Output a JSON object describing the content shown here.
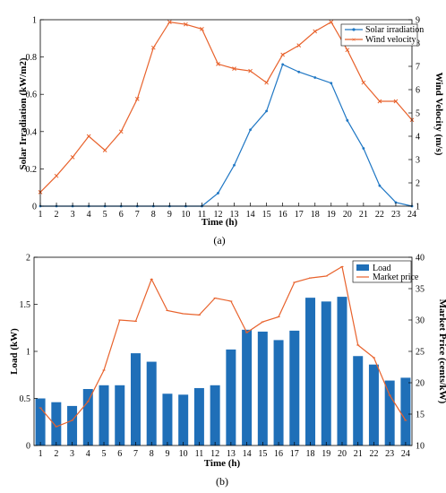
{
  "chart_data": [
    {
      "panel": "(a)",
      "type": "line",
      "xlabel": "Time (h)",
      "ylabel": "Solar Irradiation (kW/m2)",
      "y2label": "Wind Velocity (m/s)",
      "x": [
        1,
        2,
        3,
        4,
        5,
        6,
        7,
        8,
        9,
        10,
        11,
        12,
        13,
        14,
        15,
        16,
        17,
        18,
        19,
        20,
        21,
        22,
        23,
        24
      ],
      "xlim": [
        1,
        24
      ],
      "ylim": [
        0,
        1
      ],
      "yticks": [
        "0",
        "0.2",
        "0.4",
        "0.6",
        "0.8",
        "1"
      ],
      "y2lim": [
        1,
        9
      ],
      "y2ticks": [
        "1",
        "2",
        "3",
        "4",
        "5",
        "6",
        "7",
        "8",
        "9"
      ],
      "legend_position": "top-right",
      "series": [
        {
          "name": "Solar irradiation",
          "axis": "left",
          "color": "#1f77c4",
          "marker": "dot",
          "values": [
            0,
            0,
            0,
            0,
            0,
            0,
            0,
            0,
            0,
            0,
            0,
            0.07,
            0.22,
            0.41,
            0.51,
            0.76,
            0.72,
            0.69,
            0.66,
            0.46,
            0.31,
            0.11,
            0.02,
            0.0
          ]
        },
        {
          "name": "Wind velocity",
          "axis": "right",
          "color": "#e8622c",
          "marker": "x",
          "values": [
            1.6,
            2.3,
            3.1,
            4.0,
            3.4,
            4.2,
            5.6,
            7.8,
            8.9,
            8.8,
            8.6,
            7.1,
            6.9,
            6.8,
            6.3,
            7.5,
            7.9,
            8.5,
            8.9,
            7.7,
            6.3,
            5.5,
            5.5,
            4.7
          ]
        }
      ]
    },
    {
      "panel": "(b)",
      "type": "bar+line",
      "xlabel": "Time (h)",
      "ylabel": "Load (kW)",
      "y2label": "Market Price (cents/kW)",
      "x": [
        1,
        2,
        3,
        4,
        5,
        6,
        7,
        8,
        9,
        10,
        11,
        12,
        13,
        14,
        15,
        16,
        17,
        18,
        19,
        20,
        21,
        22,
        23,
        24
      ],
      "xlim": [
        0.6,
        24.4
      ],
      "ylim": [
        0,
        2
      ],
      "yticks": [
        "0",
        "0.5",
        "1",
        "1.5",
        "2"
      ],
      "y2lim": [
        10,
        40
      ],
      "y2ticks": [
        "10",
        "15",
        "20",
        "25",
        "30",
        "35",
        "40"
      ],
      "legend_position": "top-right",
      "series": [
        {
          "name": "Load",
          "kind": "bar",
          "axis": "left",
          "color": "#1f6fb8",
          "values": [
            0.5,
            0.46,
            0.42,
            0.6,
            0.64,
            0.64,
            0.98,
            0.89,
            0.55,
            0.54,
            0.61,
            0.64,
            1.02,
            1.23,
            1.21,
            1.12,
            1.22,
            1.57,
            1.53,
            1.58,
            0.95,
            0.86,
            0.69,
            0.72
          ]
        },
        {
          "name": "Market price",
          "kind": "line",
          "axis": "right",
          "color": "#e8622c",
          "marker": "tick",
          "values": [
            16.0,
            13.0,
            14.0,
            17.0,
            22.0,
            30.0,
            29.8,
            36.5,
            31.5,
            31.0,
            30.8,
            33.5,
            33.0,
            28.0,
            29.7,
            30.5,
            36.0,
            36.7,
            37.0,
            38.5,
            26.0,
            24.0,
            18.0,
            14.0
          ]
        }
      ]
    }
  ]
}
